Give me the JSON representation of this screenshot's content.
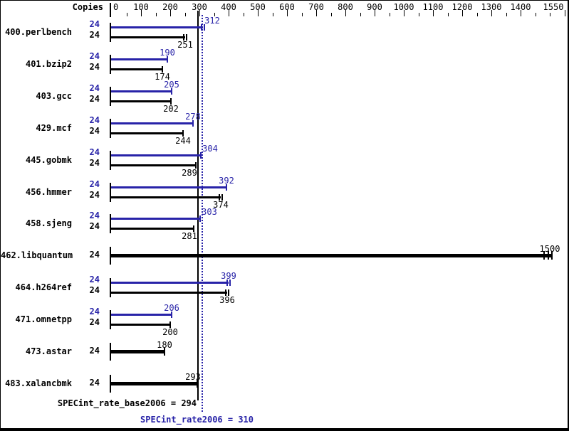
{
  "chart_data": {
    "type": "bar",
    "orientation": "horizontal",
    "copies_column_header": "Copies",
    "x_axis": {
      "min": 0,
      "max": 1550,
      "major_tick_step": 100,
      "minor_tick_step": 50,
      "tick_labels": [
        0,
        100,
        200,
        300,
        400,
        500,
        600,
        700,
        800,
        900,
        1000,
        1100,
        1200,
        1300,
        1400,
        1550
      ],
      "grid": false
    },
    "benchmarks": [
      {
        "name": "400.perlbench",
        "copies": 24,
        "peak": 312,
        "base": 251,
        "peak_end_ticks": 2,
        "base_end_ticks": 2
      },
      {
        "name": "401.bzip2",
        "copies": 24,
        "peak": 190,
        "base": 174
      },
      {
        "name": "403.gcc",
        "copies": 24,
        "peak": 205,
        "base": 202
      },
      {
        "name": "429.mcf",
        "copies": 24,
        "peak": 278,
        "base": 244
      },
      {
        "name": "445.gobmk",
        "copies": 24,
        "peak": 304,
        "base": 289
      },
      {
        "name": "456.hmmer",
        "copies": 24,
        "peak": 392,
        "base": 374,
        "base_end_ticks": 2
      },
      {
        "name": "458.sjeng",
        "copies": 24,
        "peak": 303,
        "base": 281
      },
      {
        "name": "462.libquantum",
        "copies": 24,
        "single": 1500,
        "single_end_ticks": 3
      },
      {
        "name": "464.h264ref",
        "copies": 24,
        "peak": 399,
        "base": 396,
        "peak_end_ticks": 2,
        "base_end_ticks": 2
      },
      {
        "name": "471.omnetpp",
        "copies": 24,
        "peak": 206,
        "base": 200
      },
      {
        "name": "473.astar",
        "copies": 24,
        "single": 180
      },
      {
        "name": "483.xalancbmk",
        "copies": 24,
        "single": 293
      }
    ],
    "reference_lines": [
      {
        "value": 294,
        "style": "solid",
        "color": "#000000",
        "caption": "SPECint_rate_base2006 = 294"
      },
      {
        "value": 310,
        "style": "dotted",
        "color": "#2823a8",
        "caption": "SPECint_rate2006 = 310"
      }
    ],
    "colors": {
      "peak": "#2823a8",
      "base": "#000000",
      "background": "#ffffff",
      "frame": "#000000"
    }
  }
}
